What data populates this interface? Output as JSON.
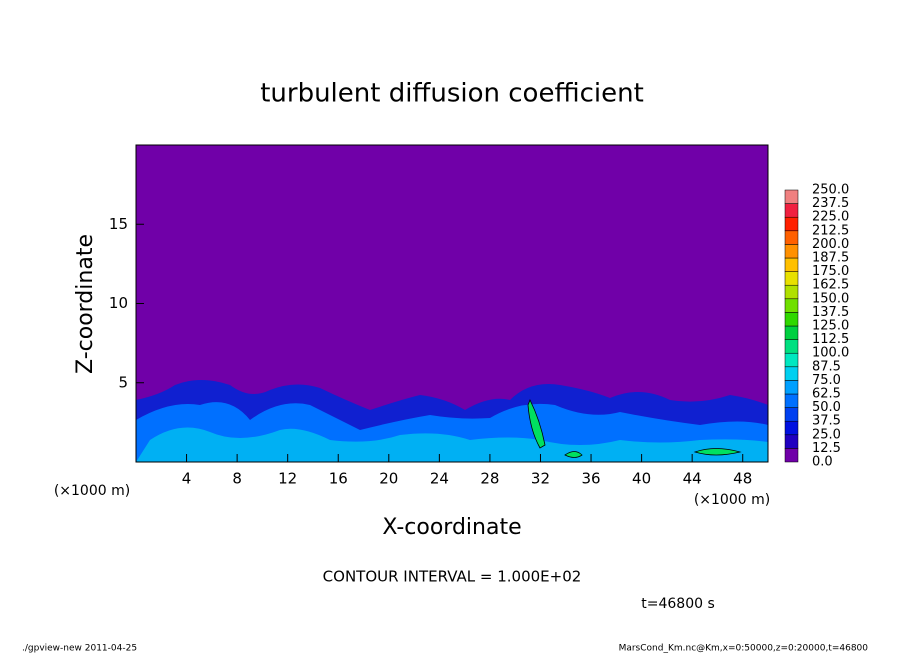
{
  "chart_data": {
    "type": "contour",
    "title": "turbulent diffusion coefficient",
    "x_label": "X-coordinate",
    "y_label": "Z-coordinate",
    "x_unit": "(×1000 m)",
    "y_unit": "(×1000 m)",
    "xlim": [
      0,
      50
    ],
    "xticks": [
      4,
      8,
      12,
      16,
      20,
      24,
      28,
      32,
      36,
      40,
      44,
      48
    ],
    "ylim": [
      0,
      20
    ],
    "yticks": [
      5,
      10,
      15
    ],
    "colorbar": {
      "levels": [
        {
          "value": 0,
          "label": "0.0"
        },
        12.5,
        {
          "value": 25,
          "label": "25.0"
        },
        37.5,
        {
          "value": 50,
          "label": "50.0"
        },
        62.5,
        {
          "value": 75,
          "label": "75.0"
        },
        87.5,
        {
          "value": 100,
          "label": "100.0"
        },
        112.5,
        {
          "value": 125,
          "label": "125.0"
        },
        137.5,
        {
          "value": 150,
          "label": "150.0"
        },
        162.5,
        {
          "value": 175,
          "label": "175.0"
        },
        187.5,
        {
          "value": 200,
          "label": "200.0"
        },
        212.5,
        {
          "value": 225,
          "label": "225.0"
        },
        237.5,
        {
          "value": 250,
          "label": "250.0"
        }
      ],
      "colors": [
        "#7000a8",
        "#2000c0",
        "#0010e0",
        "#0040f0",
        "#0070ff",
        "#00a0ff",
        "#00d0f0",
        "#00e8c0",
        "#00e080",
        "#00d040",
        "#30d800",
        "#70e000",
        "#b0e000",
        "#e8e000",
        "#ffc000",
        "#ff9000",
        "#ff6000",
        "#ff2000",
        "#f02040",
        "#f08080"
      ]
    },
    "annotations": {
      "contour_interval": "CONTOUR INTERVAL = 1.000E+02",
      "time": "t=46800 s"
    },
    "footer": {
      "left": "./gpview-new  2011-04-25",
      "right": "MarsCond_Km.nc@Km,x=0:50000,z=0:20000,t=46800"
    }
  }
}
